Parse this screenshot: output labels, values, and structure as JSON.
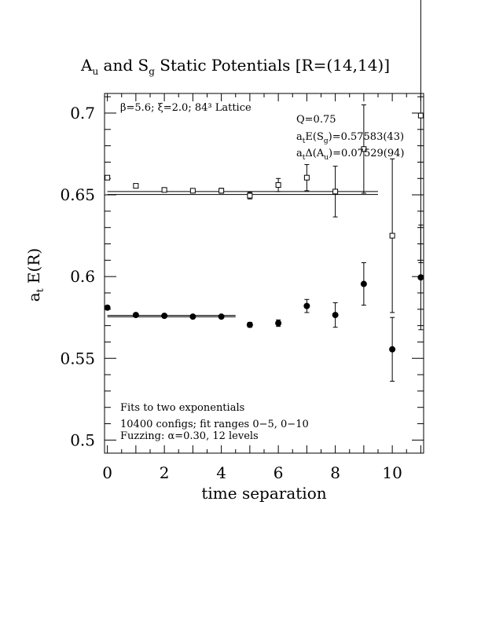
{
  "chart_data": {
    "type": "scatter",
    "title": {
      "p1": "A",
      "p1_sub": "u",
      "p2": " and S",
      "p2_sub": "g",
      "p3": " Static Potentials [R=(14,14)]"
    },
    "xlabel": "time separation",
    "ylabel": {
      "main": "a",
      "sub": "t",
      "rest": " E(R)"
    },
    "xlim": [
      -0.1,
      11.1
    ],
    "ylim": [
      0.492,
      0.712
    ],
    "x_ticks": [
      0,
      2,
      4,
      6,
      8,
      10
    ],
    "x_tick_labels": [
      "0",
      "2",
      "4",
      "6",
      "8",
      "10"
    ],
    "y_ticks": [
      0.5,
      0.55,
      0.6,
      0.65,
      0.7
    ],
    "y_tick_labels": [
      "0.5",
      "0.55",
      "0.6",
      "0.65",
      "0.7"
    ],
    "annotations": {
      "lattice": "β=5.6; ξ=2.0; 84³ Lattice",
      "q": "Q=0.75",
      "es": {
        "a": "a",
        "a_sub": "t",
        "b": "E(S",
        "b_sub": "g",
        "c": ")=0.57583(43)"
      },
      "da": {
        "a": "a",
        "a_sub": "t",
        "b": "Δ(A",
        "b_sub": "u",
        "c": ")=0.07529(94)"
      },
      "fits": "Fits to two exponentials",
      "configs": "10400 configs; fit ranges 0−5, 0−10",
      "fuzzing": "Fuzzing: α=0.30, 12 levels"
    },
    "series": [
      {
        "name": "S_g",
        "marker": "filled-circle",
        "x": [
          0,
          1,
          2,
          3,
          4,
          5,
          6,
          7,
          8,
          9,
          10,
          11
        ],
        "y": [
          0.581,
          0.5765,
          0.576,
          0.5755,
          0.5755,
          0.5705,
          0.5715,
          0.582,
          0.5765,
          0.5955,
          0.5555,
          0.5995
        ],
        "err": [
          0.001,
          0.001,
          0.001,
          0.001,
          0.001,
          0.0015,
          0.002,
          0.004,
          0.0075,
          0.013,
          0.0195,
          0.032
        ]
      },
      {
        "name": "A_u",
        "marker": "open-square",
        "x": [
          0,
          1,
          2,
          3,
          4,
          5,
          6,
          7,
          8,
          9,
          10,
          11
        ],
        "y": [
          0.6605,
          0.6555,
          0.653,
          0.6525,
          0.6525,
          0.6495,
          0.656,
          0.6605,
          0.652,
          0.678,
          0.625,
          0.6985
        ],
        "err": [
          0.001,
          0.001,
          0.001,
          0.001,
          0.0015,
          0.002,
          0.004,
          0.008,
          0.0155,
          0.027,
          0.047,
          0.09
        ]
      }
    ],
    "fit_lines": [
      {
        "series": "S_g",
        "x_range": [
          0,
          4.5
        ],
        "value": 0.57583,
        "band": 0.00043
      },
      {
        "series": "A_u",
        "x_range": [
          0,
          9.5
        ],
        "value": 0.65112,
        "band": 0.0009
      }
    ],
    "grid": false,
    "legend": "none"
  }
}
